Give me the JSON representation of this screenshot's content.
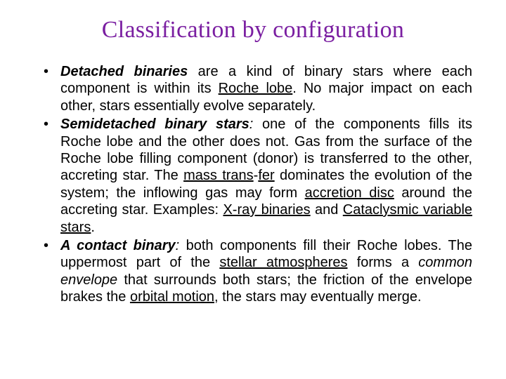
{
  "title_color": "#7a1ea1",
  "title_text": "Classification by configuration",
  "bullets": [
    {
      "lead_html": "<span class=\"bi\">Detached binaries</span>",
      "rest_html": " are a kind of binary stars where each component is within its <span class=\"u\">Roche lobe</span>. No major impact on each other, stars essentially evolve separately."
    },
    {
      "lead_html": "<span class=\"bi\">Semidetached binary stars</span><span class=\"i\">:</span>",
      "rest_html": " one of the components fills its Roche lobe and the other does not. Gas from the surface of the Roche lobe filling component (donor) is transferred to the other, accreting star. The <span class=\"u\">mass trans</span>-<span class=\"u\">fer</span> dominates the evolution of the system; the inflowing gas may form <span class=\"u\">accretion disc</span> around the accreting star. Examples: <span class=\"u\">X-ray binaries</span> and <span class=\"u\">Cataclysmic variable stars</span>."
    },
    {
      "lead_html": "<span class=\"bi\">A contact binary</span><span class=\"i\">:</span>",
      "rest_html": " both components fill their Roche lobes. The uppermost part of the <span class=\"u\">stellar atmospheres</span> forms a <span class=\"i\">common envelope</span> that surrounds both stars; the friction of the envelope brakes the <span class=\"u\">orbital motion</span>, the stars may eventually merge."
    }
  ]
}
